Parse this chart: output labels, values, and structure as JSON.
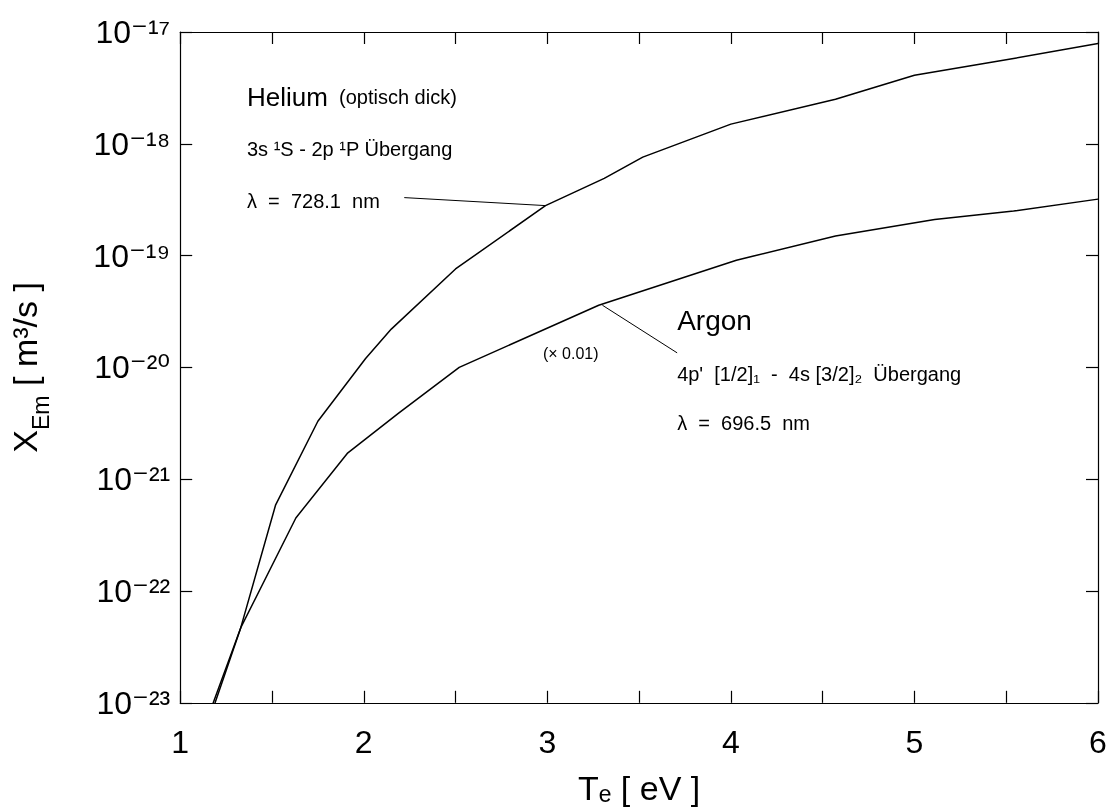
{
  "chart_data": {
    "type": "line",
    "xlabel": "Tₑ [ eV ]",
    "ylabel": "X$_{Em}$ [ m³/s ]",
    "log": "y",
    "xlim": [
      1,
      6
    ],
    "ylim": [
      1e-23,
      1e-17
    ],
    "xticks": [
      1,
      {
        "value": 1.5,
        "label": null
      },
      2,
      {
        "value": 2.5,
        "label": null
      },
      3,
      {
        "value": 3.5,
        "label": null
      },
      4,
      {
        "value": 4.5,
        "label": null
      },
      5,
      {
        "value": 5.5,
        "label": null
      },
      6
    ],
    "yticks": [
      {
        "value": 1e-23,
        "label": "10⁻²³"
      },
      {
        "value": 1e-22,
        "label": "10⁻²²"
      },
      {
        "value": 1e-21,
        "label": "10⁻²¹"
      },
      {
        "value": 1e-20,
        "label": "10⁻²⁰"
      },
      {
        "value": 1e-19,
        "label": "10⁻¹⁹"
      },
      {
        "value": 1e-18,
        "label": "10⁻¹⁸"
      },
      {
        "value": 1e-17,
        "label": "10⁻¹⁷"
      }
    ],
    "grid": false,
    "marker": "none",
    "series": [
      {
        "color": "#000000",
        "x": [
          1.19,
          1.33,
          1.52,
          1.75,
          2.01,
          2.15,
          2.5,
          2.99,
          3.31,
          3.52,
          4.0,
          4.57,
          5.0,
          5.54,
          6.0
        ],
        "values": [
          1e-23,
          4.7e-23,
          5.9e-22,
          3.3e-21,
          1.2e-20,
          2.2e-20,
          7.6e-20,
          2.8e-19,
          4.9e-19,
          7.6e-19,
          1.5e-18,
          2.5e-18,
          4.1e-18,
          5.8e-18,
          7.9e-18
        ]
      },
      {
        "color": "#000000",
        "x": [
          1.18,
          1.33,
          1.63,
          1.91,
          2.19,
          2.52,
          3.28,
          4.03,
          4.57,
          5.11,
          5.54,
          6.0
        ],
        "values": [
          1e-23,
          4.7e-23,
          4.5e-22,
          1.7e-21,
          3.9e-21,
          1e-20,
          3.6e-20,
          9.1e-20,
          1.5e-19,
          2.1e-19,
          2.5e-19,
          3.2e-19
        ]
      }
    ],
    "annotations": [
      "Helium  (optisch dick)",
      "3s ¹S - 2p ¹P Übergang",
      {
        "text": "λ  =  728.1  nm",
        "x": 2.99,
        "y": 2.8e-19
      },
      {
        "text": "Argon",
        "x": 3.3,
        "y": 3.6e-20
      },
      "4p'  [1/2]₁  -  4s [3/2]₂  Übergang",
      "λ  =  696.5  nm",
      "(× 0.01)"
    ]
  }
}
